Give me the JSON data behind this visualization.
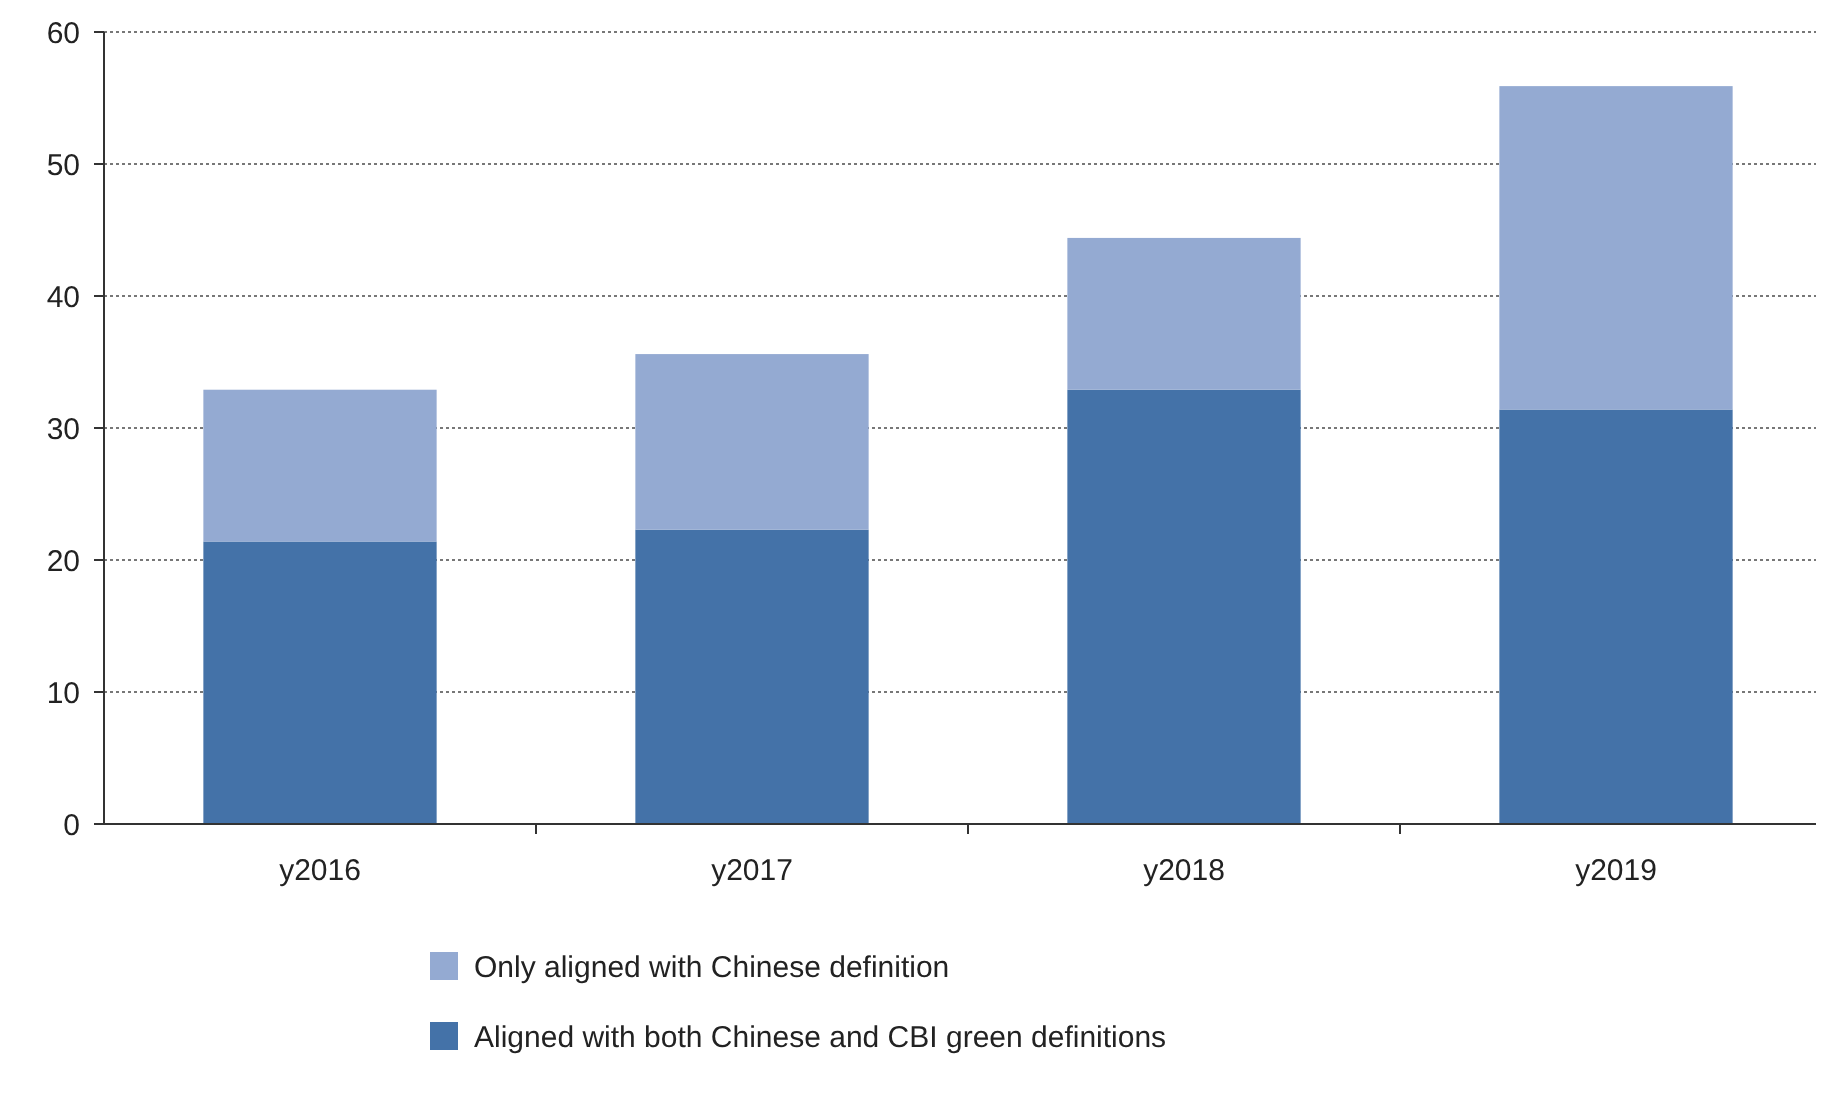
{
  "chart_data": {
    "type": "bar",
    "stacked": true,
    "categories": [
      "y2016",
      "y2017",
      "y2018",
      "y2019"
    ],
    "series": [
      {
        "name": "Aligned with both Chinese and CBI green definitions",
        "color": "#4472a8",
        "values": [
          21.4,
          22.3,
          32.9,
          31.4
        ]
      },
      {
        "name": "Only aligned with Chinese definition",
        "color": "#94aad2",
        "values": [
          11.5,
          13.3,
          11.5,
          24.5
        ]
      }
    ],
    "ylim": [
      0,
      60
    ],
    "yticks": [
      0,
      10,
      20,
      30,
      40,
      50,
      60
    ],
    "grid": "y",
    "legend": "bottom"
  }
}
